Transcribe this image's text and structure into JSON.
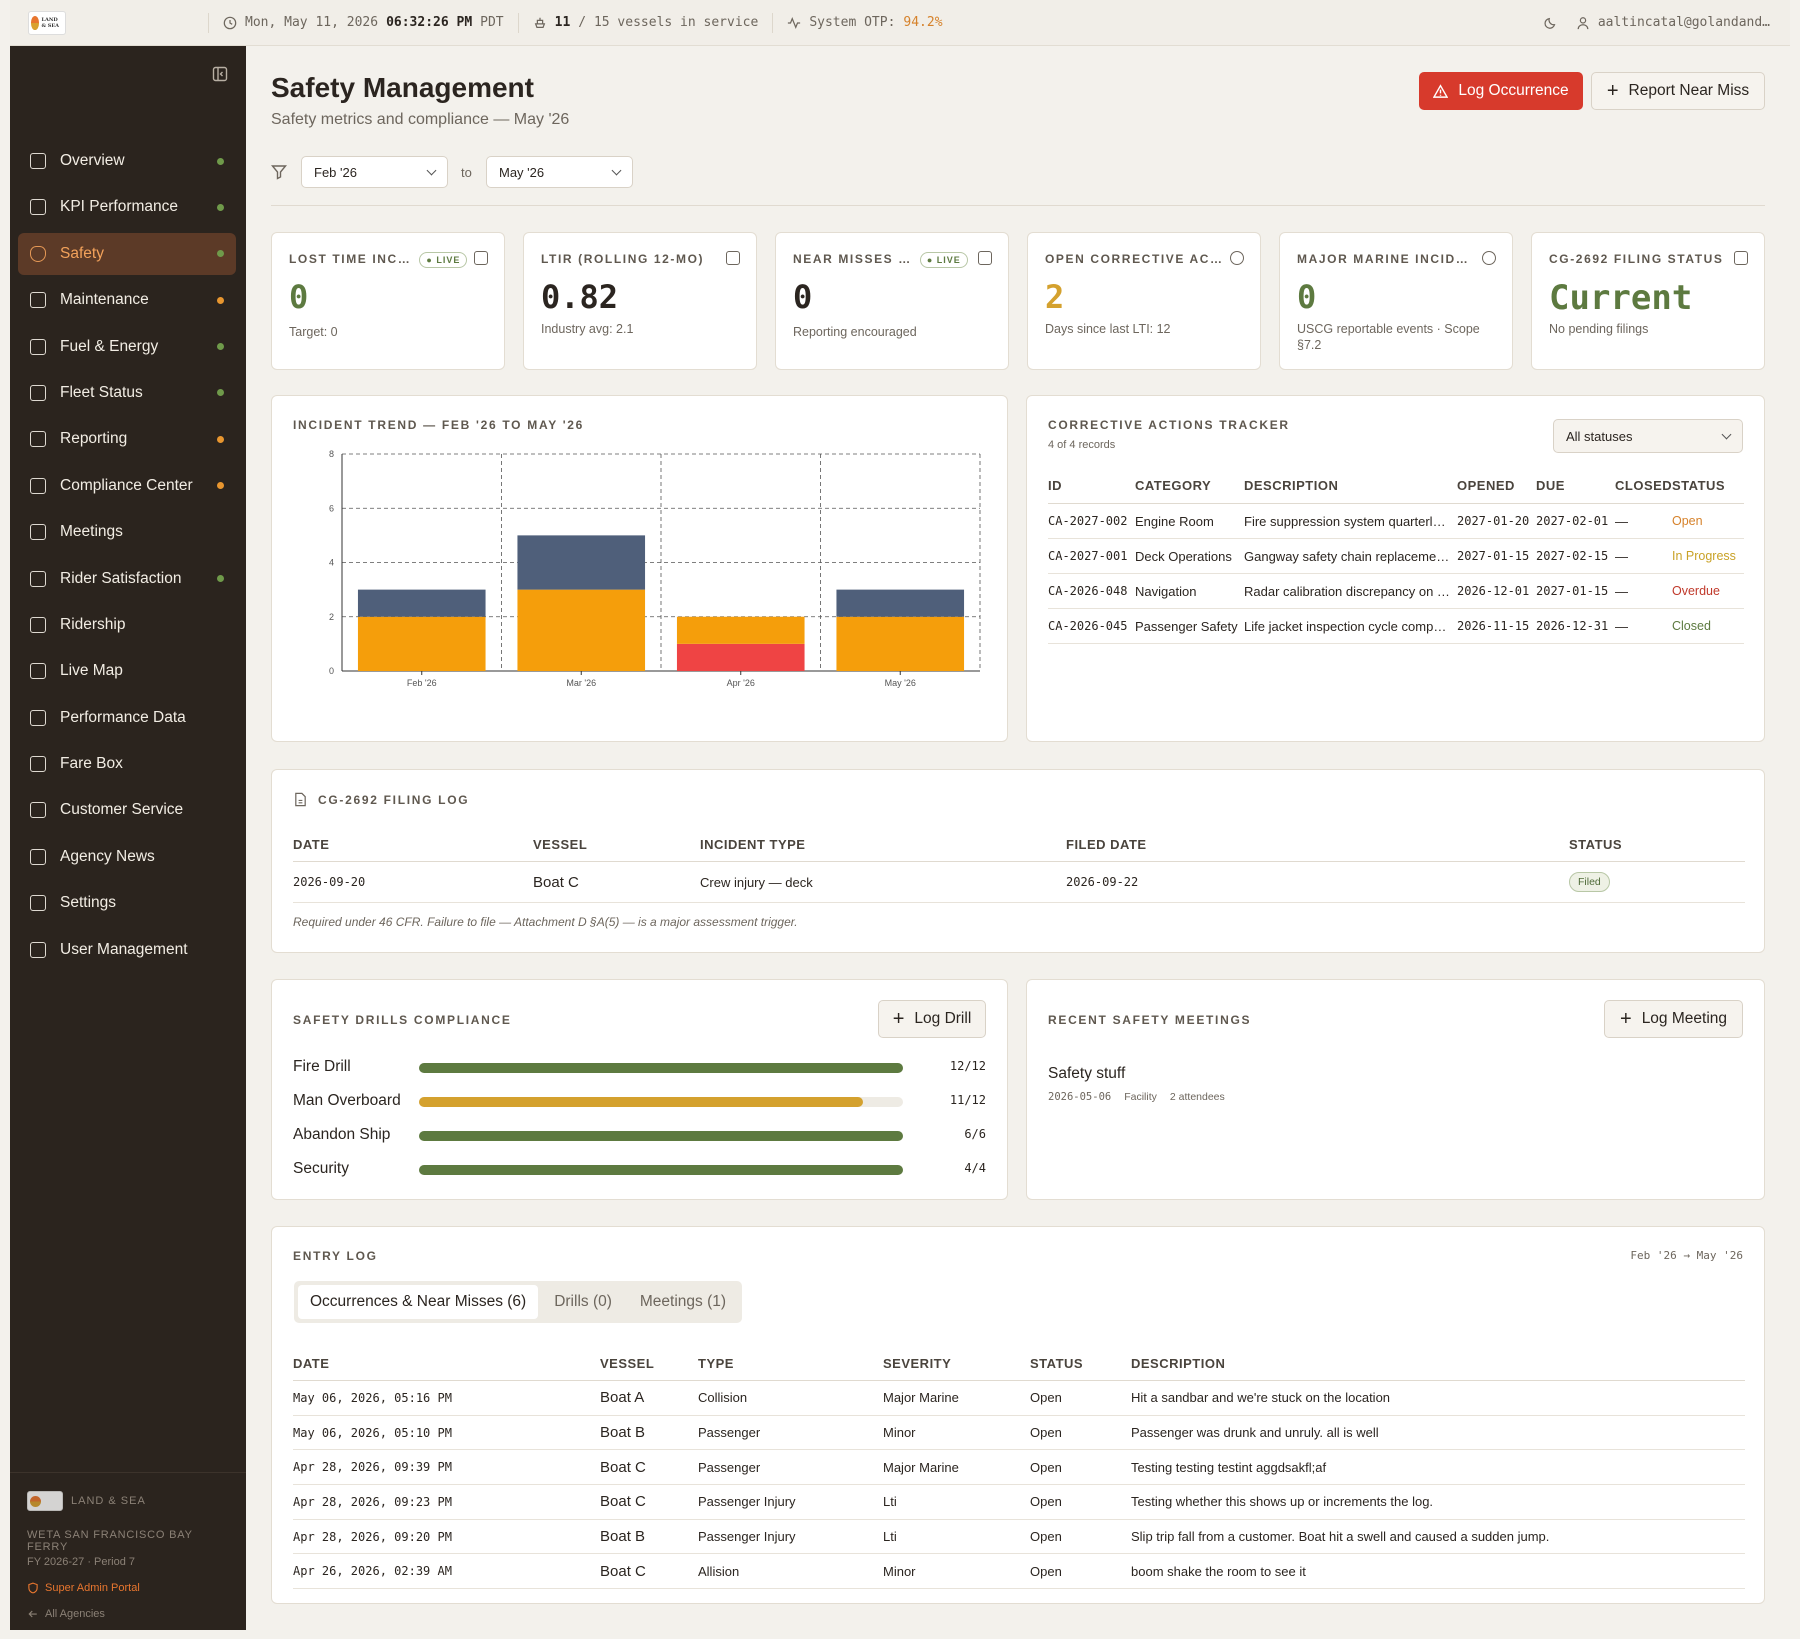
{
  "topbar": {
    "logo_text": "LAND & SEA",
    "datetime_prefix": "Mon, May 11, 2026",
    "time": "06:32:26 PM",
    "tz": "PDT",
    "vessels_count": "11",
    "vessels_rest": "/ 15 vessels in service",
    "otp_label": "System OTP:",
    "otp_value": "94.2%",
    "user": "aaltincatal@golandand…"
  },
  "sidebar": {
    "items": [
      {
        "label": "Overview",
        "dot": "#6f9a4a"
      },
      {
        "label": "KPI Performance",
        "dot": "#6f9a4a"
      },
      {
        "label": "Safety",
        "dot": "#6f9a4a"
      },
      {
        "label": "Maintenance",
        "dot": "#e8962f"
      },
      {
        "label": "Fuel & Energy",
        "dot": "#6f9a4a"
      },
      {
        "label": "Fleet Status",
        "dot": "#6f9a4a"
      },
      {
        "label": "Reporting",
        "dot": "#e8962f"
      },
      {
        "label": "Compliance Center",
        "dot": "#e8962f"
      },
      {
        "label": "Meetings",
        "dot": ""
      },
      {
        "label": "Rider Satisfaction",
        "dot": "#6f9a4a"
      },
      {
        "label": "Ridership",
        "dot": ""
      },
      {
        "label": "Live Map",
        "dot": ""
      },
      {
        "label": "Performance Data",
        "dot": ""
      },
      {
        "label": "Fare Box",
        "dot": ""
      },
      {
        "label": "Customer Service",
        "dot": ""
      },
      {
        "label": "Agency News",
        "dot": ""
      },
      {
        "label": "Settings",
        "dot": ""
      },
      {
        "label": "User Management",
        "dot": ""
      }
    ],
    "footer_brand": "LAND & SEA",
    "agency": "WETA SAN FRANCISCO BAY FERRY",
    "period": "FY 2026-27 · Period 7",
    "portal": "Super Admin Portal",
    "all_agencies": "All Agencies"
  },
  "header": {
    "title": "Safety Management",
    "subtitle": "Safety metrics and compliance — May '26",
    "log_occurrence": "Log Occurrence",
    "report_near_miss": "Report Near Miss"
  },
  "filter": {
    "from": "Feb '26",
    "to_label": "to",
    "to": "May '26"
  },
  "kpis": [
    {
      "label": "LOST TIME INC…",
      "live": "LIVE",
      "value": "0",
      "sub": "Target: 0",
      "color": "#5d7a40"
    },
    {
      "label": "LTIR (ROLLING 12-MO)",
      "live": "",
      "value": "0.82",
      "sub": "Industry avg: 2.1",
      "color": "#2b2520"
    },
    {
      "label": "NEAR MISSES …",
      "live": "LIVE",
      "value": "0",
      "sub": "Reporting encouraged",
      "color": "#2b2520"
    },
    {
      "label": "OPEN CORRECTIVE AC…",
      "live": "",
      "value": "2",
      "sub": "Days since last LTI: 12",
      "color": "#d4a12e"
    },
    {
      "label": "MAJOR MARINE INCID…",
      "live": "",
      "value": "0",
      "sub": "USCG reportable events · Scope §7.2",
      "color": "#5d7a40"
    },
    {
      "label": "CG-2692 FILING STATUS",
      "live": "",
      "value": "Current",
      "sub": "No pending filings",
      "color": "#5d7a40"
    }
  ],
  "incident_chart": {
    "title": "INCIDENT TREND — FEB '26 TO MAY '26"
  },
  "chart_data": {
    "type": "bar",
    "stacked": true,
    "categories": [
      "Feb '26",
      "Mar '26",
      "Apr '26",
      "May '26"
    ],
    "series": [
      {
        "color": "#ef4444",
        "values": [
          0,
          0,
          1,
          0
        ]
      },
      {
        "color": "#f59e0b",
        "values": [
          2,
          3,
          1,
          2
        ]
      },
      {
        "color": "#4f5f7a",
        "values": [
          1,
          2,
          0,
          1
        ]
      }
    ],
    "ylim": [
      0,
      8
    ],
    "yticks": [
      "0",
      "2",
      "4",
      "6",
      "8"
    ],
    "grid": true
  },
  "corrective": {
    "title": "CORRECTIVE ACTIONS TRACKER",
    "count": "4 of 4 records",
    "filter": "All statuses",
    "headers": [
      "ID",
      "CATEGORY",
      "DESCRIPTION",
      "OPENED",
      "DUE",
      "CLOSED",
      "STATUS"
    ],
    "rows": [
      {
        "id": "CA-2027-002",
        "category": "Engine Room",
        "desc": "Fire suppression system quarterl…",
        "opened": "2027-01-20",
        "due": "2027-02-01",
        "closed": "—",
        "status": "Open",
        "color": "#d6822b"
      },
      {
        "id": "CA-2027-001",
        "category": "Deck Operations",
        "desc": "Gangway safety chain replaceme…",
        "opened": "2027-01-15",
        "due": "2027-02-15",
        "closed": "—",
        "status": "In Progress",
        "color": "#c9a227"
      },
      {
        "id": "CA-2026-048",
        "category": "Navigation",
        "desc": "Radar calibration discrepancy on …",
        "opened": "2026-12-01",
        "due": "2027-01-15",
        "closed": "—",
        "status": "Overdue",
        "color": "#c0392b"
      },
      {
        "id": "CA-2026-045",
        "category": "Passenger Safety",
        "desc": "Life jacket inspection cycle comp…",
        "opened": "2026-11-15",
        "due": "2026-12-31",
        "closed": "—",
        "status": "Closed",
        "color": "#5d7a40"
      }
    ]
  },
  "filing": {
    "title": "CG-2692 FILING LOG",
    "headers": [
      "DATE",
      "VESSEL",
      "INCIDENT TYPE",
      "FILED DATE",
      "STATUS"
    ],
    "row": {
      "date": "2026-09-20",
      "vessel": "Boat C",
      "type": "Crew injury — deck",
      "filed": "2026-09-22",
      "status": "Filed"
    },
    "note": "Required under 46 CFR. Failure to file — Attachment D §A(5) — is a major assessment trigger."
  },
  "drills": {
    "title": "SAFETY DRILLS COMPLIANCE",
    "button": "Log Drill",
    "items": [
      {
        "label": "Fire Drill",
        "value": "12/12",
        "fraction": 1.0,
        "color": "#5d7a40"
      },
      {
        "label": "Man Overboard",
        "value": "11/12",
        "fraction": 0.917,
        "color": "#d4a12e"
      },
      {
        "label": "Abandon Ship",
        "value": "6/6",
        "fraction": 1.0,
        "color": "#5d7a40"
      },
      {
        "label": "Security",
        "value": "4/4",
        "fraction": 1.0,
        "color": "#5d7a40"
      }
    ]
  },
  "meetings": {
    "title": "RECENT SAFETY MEETINGS",
    "button": "Log Meeting",
    "item": {
      "title": "Safety stuff",
      "date": "2026-05-06",
      "type": "Facility",
      "attendees": "2 attendees"
    }
  },
  "entrylog": {
    "title": "ENTRY LOG",
    "range": "Feb '26 → May '26",
    "tabs": [
      "Occurrences & Near Misses (6)",
      "Drills (0)",
      "Meetings (1)"
    ],
    "headers": [
      "DATE",
      "VESSEL",
      "TYPE",
      "SEVERITY",
      "STATUS",
      "DESCRIPTION"
    ],
    "rows": [
      {
        "date": "May 06, 2026, 05:16 PM",
        "vessel": "Boat A",
        "type": "Collision",
        "severity": "Major Marine",
        "status": "Open",
        "desc": "Hit a sandbar and we're stuck on the location"
      },
      {
        "date": "May 06, 2026, 05:10 PM",
        "vessel": "Boat B",
        "type": "Passenger",
        "severity": "Minor",
        "status": "Open",
        "desc": "Passenger was drunk and unruly. all is well"
      },
      {
        "date": "Apr 28, 2026, 09:39 PM",
        "vessel": "Boat C",
        "type": "Passenger",
        "severity": "Major Marine",
        "status": "Open",
        "desc": "Testing testing testint aggdsakfl;af"
      },
      {
        "date": "Apr 28, 2026, 09:23 PM",
        "vessel": "Boat C",
        "type": "Passenger Injury",
        "severity": "Lti",
        "status": "Open",
        "desc": "Testing whether this shows up or increments the log."
      },
      {
        "date": "Apr 28, 2026, 09:20 PM",
        "vessel": "Boat B",
        "type": "Passenger Injury",
        "severity": "Lti",
        "status": "Open",
        "desc": "Slip trip fall from a customer. Boat hit a swell and caused a sudden jump."
      },
      {
        "date": "Apr 26, 2026, 02:39 AM",
        "vessel": "Boat C",
        "type": "Allision",
        "severity": "Minor",
        "status": "Open",
        "desc": "boom shake the room to see it"
      }
    ]
  }
}
